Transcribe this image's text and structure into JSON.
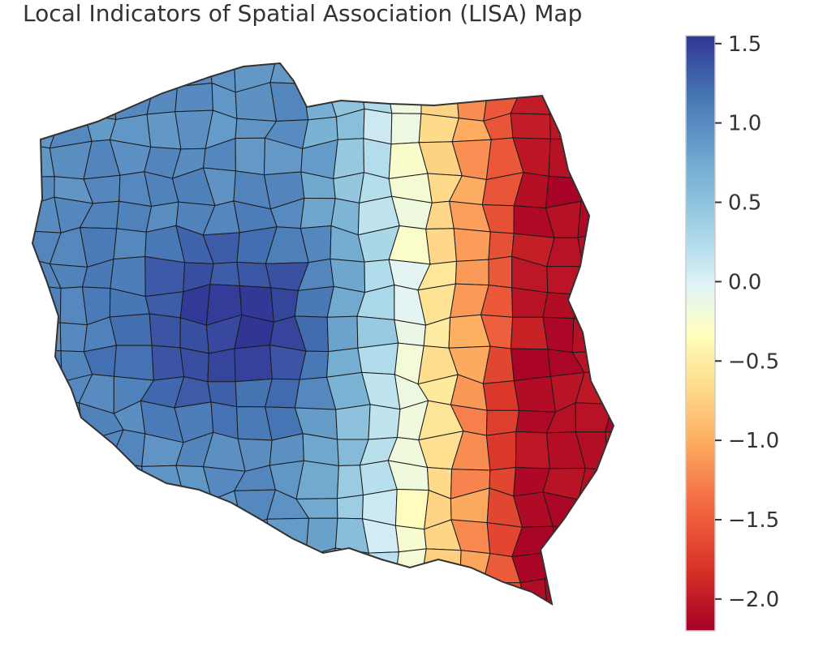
{
  "title": "Local Indicators of Spatial Association (LISA) Map",
  "colorbar": {
    "colormap": "RdYlBu",
    "min": -2.2,
    "max": 1.55,
    "ticks": [
      {
        "value": 1.5,
        "label": "1.5"
      },
      {
        "value": 1.0,
        "label": "1.0"
      },
      {
        "value": 0.5,
        "label": "0.5"
      },
      {
        "value": 0.0,
        "label": "0.0"
      },
      {
        "value": -0.5,
        "label": "−0.5"
      },
      {
        "value": -1.0,
        "label": "−1.0"
      },
      {
        "value": -1.5,
        "label": "−1.5"
      },
      {
        "value": -2.0,
        "label": "−2.0"
      }
    ]
  },
  "map": {
    "region_fill_range": [
      -2.1,
      1.5
    ],
    "pattern": "high values (blue) in the west-central area, low values (red) in the east",
    "border_color": "#1a1a1a",
    "outline_color": "#333333"
  }
}
